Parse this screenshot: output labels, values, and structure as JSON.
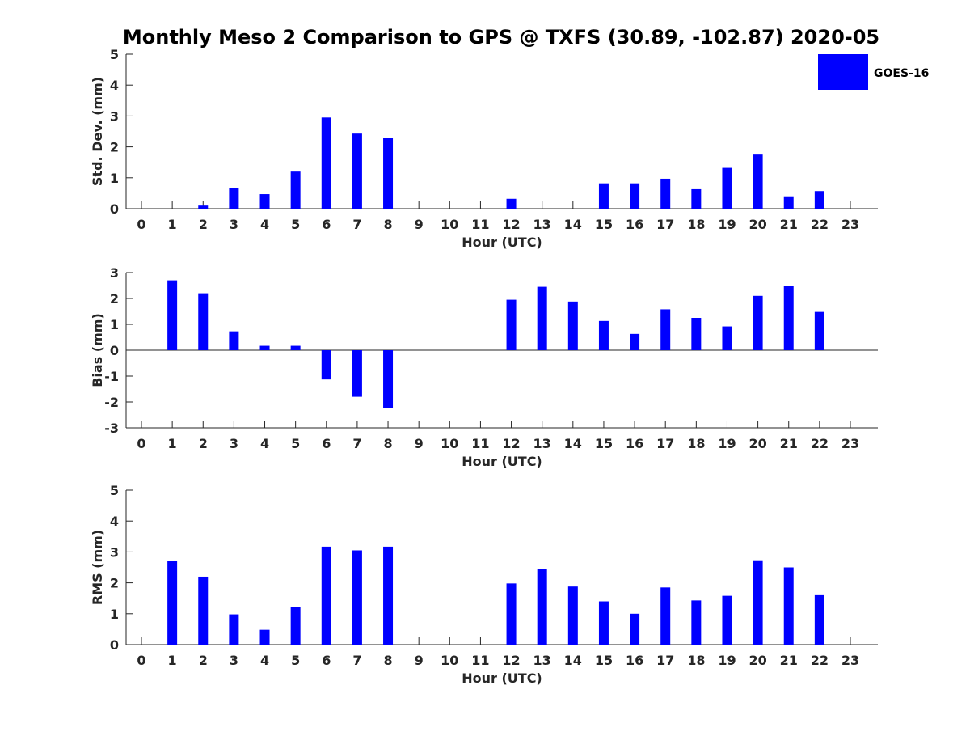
{
  "chart_data": {
    "type": "bar",
    "title": "Monthly Meso 2 Comparison to GPS @ TXFS (30.89, -102.87) 2020-05",
    "legend": {
      "label": "GOES-16",
      "placement": "top-right"
    },
    "colors": {
      "bar": "#0000ff",
      "axis": "#262626"
    },
    "categories": [
      "0",
      "1",
      "2",
      "3",
      "4",
      "5",
      "6",
      "7",
      "8",
      "9",
      "10",
      "11",
      "12",
      "13",
      "14",
      "15",
      "16",
      "17",
      "18",
      "19",
      "20",
      "21",
      "22",
      "23"
    ],
    "panels": [
      {
        "id": "stddev",
        "xlabel": "Hour (UTC)",
        "ylabel": "Std. Dev. (mm)",
        "ylim": [
          0,
          5
        ],
        "yticks": [
          "0",
          "1",
          "2",
          "3",
          "4",
          "5"
        ],
        "zero_line": false,
        "values": [
          null,
          null,
          0.1,
          0.68,
          0.47,
          1.2,
          2.95,
          2.43,
          2.3,
          null,
          null,
          null,
          0.32,
          null,
          null,
          0.82,
          0.82,
          0.97,
          0.63,
          1.32,
          1.75,
          0.4,
          0.57,
          null
        ]
      },
      {
        "id": "bias",
        "xlabel": "Hour (UTC)",
        "ylabel": "Bias (mm)",
        "ylim": [
          -3,
          3
        ],
        "yticks": [
          "-3",
          "-2",
          "-1",
          "0",
          "1",
          "2",
          "3"
        ],
        "zero_line": true,
        "values": [
          null,
          2.7,
          2.2,
          0.73,
          0.17,
          0.17,
          -1.13,
          -1.8,
          -2.22,
          null,
          null,
          null,
          1.95,
          2.45,
          1.88,
          1.13,
          0.63,
          1.58,
          1.25,
          0.92,
          2.1,
          2.48,
          1.48,
          null
        ]
      },
      {
        "id": "rms",
        "xlabel": "Hour (UTC)",
        "ylabel": "RMS (mm)",
        "ylim": [
          0,
          5
        ],
        "yticks": [
          "0",
          "1",
          "2",
          "3",
          "4",
          "5"
        ],
        "zero_line": false,
        "values": [
          null,
          2.7,
          2.2,
          0.98,
          0.48,
          1.23,
          3.17,
          3.05,
          3.17,
          null,
          null,
          null,
          1.98,
          2.45,
          1.88,
          1.4,
          1.0,
          1.85,
          1.43,
          1.58,
          2.73,
          2.5,
          1.6,
          null
        ]
      }
    ]
  }
}
